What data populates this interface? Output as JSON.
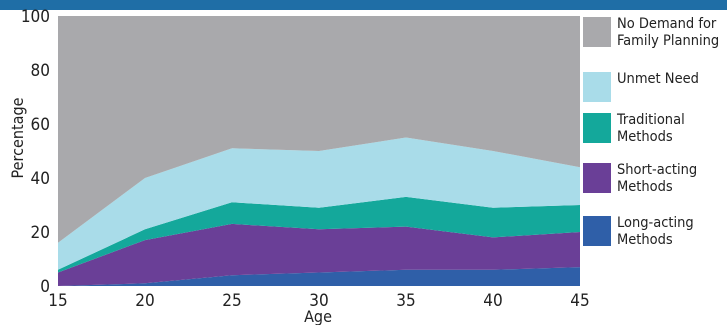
{
  "chart_data": {
    "type": "area",
    "stacked": true,
    "xlabel": "Age",
    "ylabel": "Percentage",
    "x": [
      15,
      20,
      25,
      30,
      35,
      40,
      45
    ],
    "xticks": [
      "15",
      "20",
      "25",
      "30",
      "35",
      "40",
      "45"
    ],
    "yticks": [
      "0",
      "20",
      "40",
      "60",
      "80",
      "100"
    ],
    "ylim": [
      0,
      100
    ],
    "xlim": [
      15,
      45
    ],
    "legend_position": "right",
    "series": [
      {
        "name": "Long-acting\nMethods",
        "color": "#2f5fa8",
        "values": [
          0,
          1,
          4,
          5,
          6,
          6,
          7
        ]
      },
      {
        "name": "Short-acting\nMethods",
        "color": "#6a3f97",
        "values": [
          5,
          16,
          19,
          16,
          16,
          12,
          13
        ]
      },
      {
        "name": "Traditional\nMethods",
        "color": "#14a89b",
        "values": [
          1,
          4,
          8,
          8,
          11,
          11,
          10
        ]
      },
      {
        "name": "Unmet Need",
        "color": "#a9dce9",
        "values": [
          10,
          19,
          20,
          21,
          22,
          21,
          14
        ]
      },
      {
        "name": "No Demand for\nFamily Planning",
        "color": "#a9a9ac",
        "values": [
          84,
          60,
          49,
          50,
          45,
          50,
          56
        ]
      }
    ]
  }
}
